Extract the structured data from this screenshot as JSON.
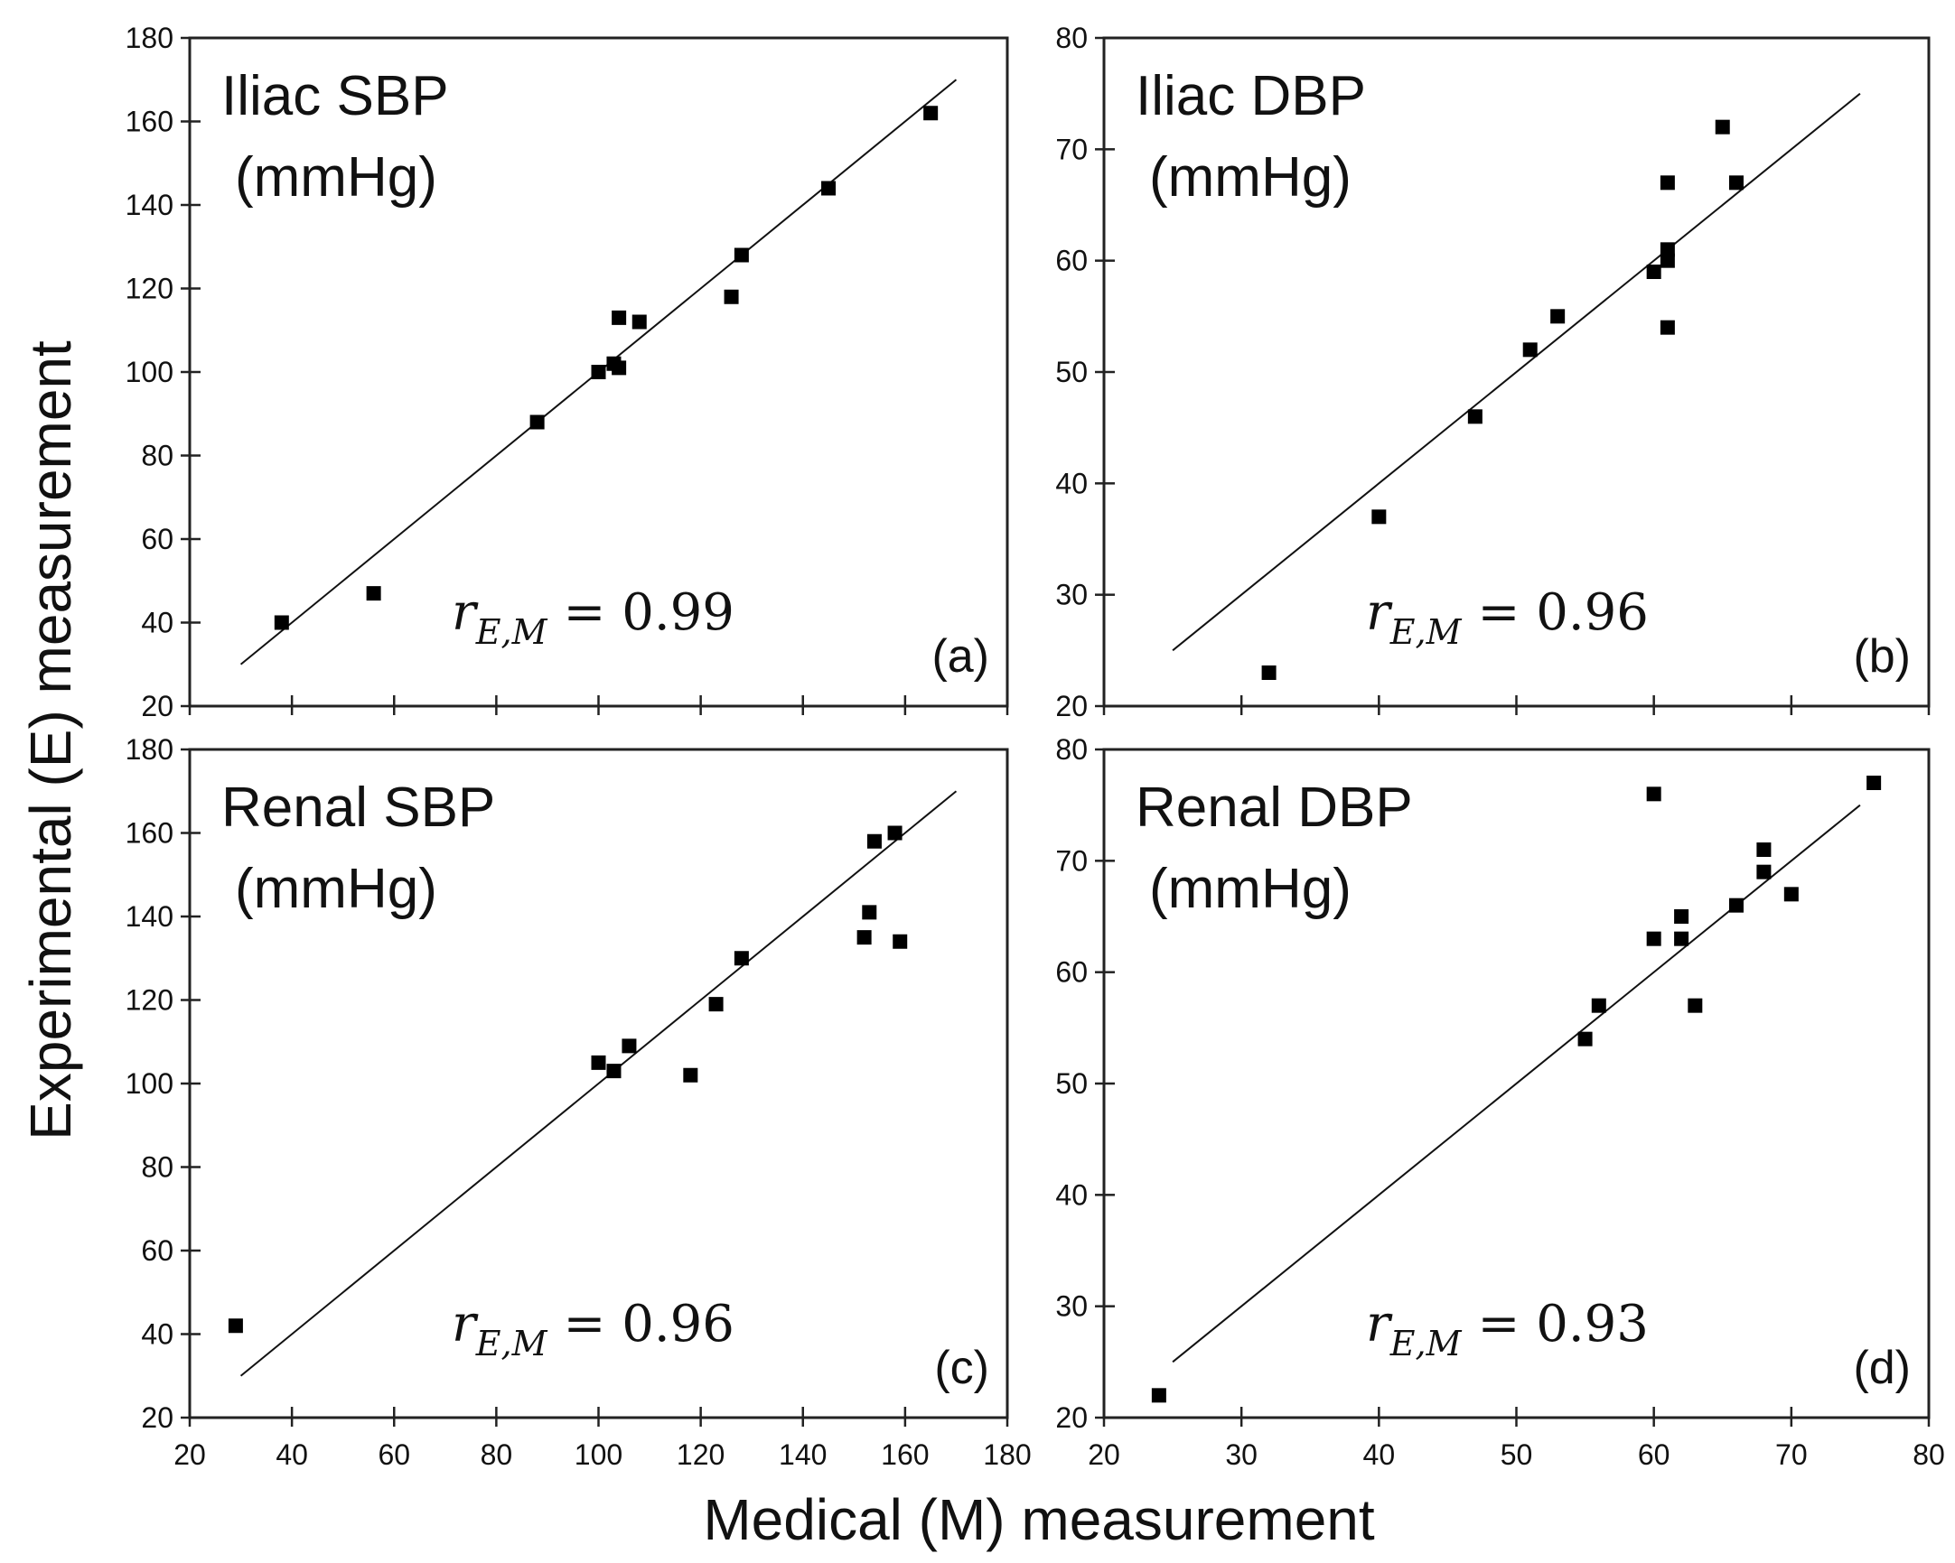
{
  "figure": {
    "xlabel": "Medical (M) measurement",
    "ylabel": "Experimental (E) measurement"
  },
  "chart_data": [
    {
      "type": "scatter",
      "panel_title": "Iliac SBP",
      "unit_label": "(mmHg)",
      "panel_tag": "(a)",
      "correlation": {
        "symbol": "r",
        "subscript": "E,M",
        "equals": "= 0.99"
      },
      "xlim": [
        20,
        180
      ],
      "ylim": [
        20,
        180
      ],
      "xticks": [
        20,
        40,
        60,
        80,
        100,
        120,
        140,
        160,
        180
      ],
      "yticks": [
        20,
        40,
        60,
        80,
        100,
        120,
        140,
        160,
        180
      ],
      "show_xtick_labels": false,
      "fit_line": {
        "x": [
          30,
          170
        ],
        "y": [
          30,
          170
        ]
      },
      "points": [
        [
          38,
          40
        ],
        [
          56,
          47
        ],
        [
          88,
          88
        ],
        [
          100,
          100
        ],
        [
          103,
          102
        ],
        [
          104,
          101
        ],
        [
          104,
          113
        ],
        [
          108,
          112
        ],
        [
          126,
          118
        ],
        [
          128,
          128
        ],
        [
          145,
          144
        ],
        [
          165,
          162
        ]
      ]
    },
    {
      "type": "scatter",
      "panel_title": "Iliac DBP",
      "unit_label": "(mmHg)",
      "panel_tag": "(b)",
      "correlation": {
        "symbol": "r",
        "subscript": "E,M",
        "equals": "= 0.96"
      },
      "xlim": [
        20,
        80
      ],
      "ylim": [
        20,
        80
      ],
      "xticks": [
        20,
        30,
        40,
        50,
        60,
        70,
        80
      ],
      "yticks": [
        20,
        30,
        40,
        50,
        60,
        70,
        80
      ],
      "show_xtick_labels": false,
      "fit_line": {
        "x": [
          25,
          75
        ],
        "y": [
          25,
          75
        ]
      },
      "points": [
        [
          32,
          23
        ],
        [
          40,
          37
        ],
        [
          47,
          46
        ],
        [
          51,
          52
        ],
        [
          53,
          55
        ],
        [
          60,
          59
        ],
        [
          61,
          60
        ],
        [
          61,
          61
        ],
        [
          61,
          67
        ],
        [
          61,
          54
        ],
        [
          65,
          72
        ],
        [
          66,
          67
        ]
      ]
    },
    {
      "type": "scatter",
      "panel_title": "Renal SBP",
      "unit_label": "(mmHg)",
      "panel_tag": "(c)",
      "correlation": {
        "symbol": "r",
        "subscript": "E,M",
        "equals": "= 0.96"
      },
      "xlim": [
        20,
        180
      ],
      "ylim": [
        20,
        180
      ],
      "xticks": [
        20,
        40,
        60,
        80,
        100,
        120,
        140,
        160,
        180
      ],
      "yticks": [
        20,
        40,
        60,
        80,
        100,
        120,
        140,
        160,
        180
      ],
      "show_xtick_labels": true,
      "fit_line": {
        "x": [
          30,
          170
        ],
        "y": [
          30,
          170
        ]
      },
      "points": [
        [
          29,
          42
        ],
        [
          100,
          105
        ],
        [
          103,
          103
        ],
        [
          106,
          109
        ],
        [
          118,
          102
        ],
        [
          123,
          119
        ],
        [
          128,
          130
        ],
        [
          152,
          135
        ],
        [
          153,
          141
        ],
        [
          154,
          158
        ],
        [
          158,
          160
        ],
        [
          159,
          134
        ]
      ]
    },
    {
      "type": "scatter",
      "panel_title": "Renal DBP",
      "unit_label": "(mmHg)",
      "panel_tag": "(d)",
      "correlation": {
        "symbol": "r",
        "subscript": "E,M",
        "equals": "= 0.93"
      },
      "xlim": [
        20,
        80
      ],
      "ylim": [
        20,
        80
      ],
      "xticks": [
        20,
        30,
        40,
        50,
        60,
        70,
        80
      ],
      "yticks": [
        20,
        30,
        40,
        50,
        60,
        70,
        80
      ],
      "show_xtick_labels": true,
      "fit_line": {
        "x": [
          25,
          75
        ],
        "y": [
          25,
          75
        ]
      },
      "points": [
        [
          24,
          22
        ],
        [
          55,
          54
        ],
        [
          56,
          57
        ],
        [
          60,
          63
        ],
        [
          60,
          76
        ],
        [
          62,
          63
        ],
        [
          62,
          65
        ],
        [
          63,
          57
        ],
        [
          66,
          66
        ],
        [
          68,
          69
        ],
        [
          68,
          71
        ],
        [
          70,
          67
        ],
        [
          76,
          77
        ]
      ]
    }
  ]
}
